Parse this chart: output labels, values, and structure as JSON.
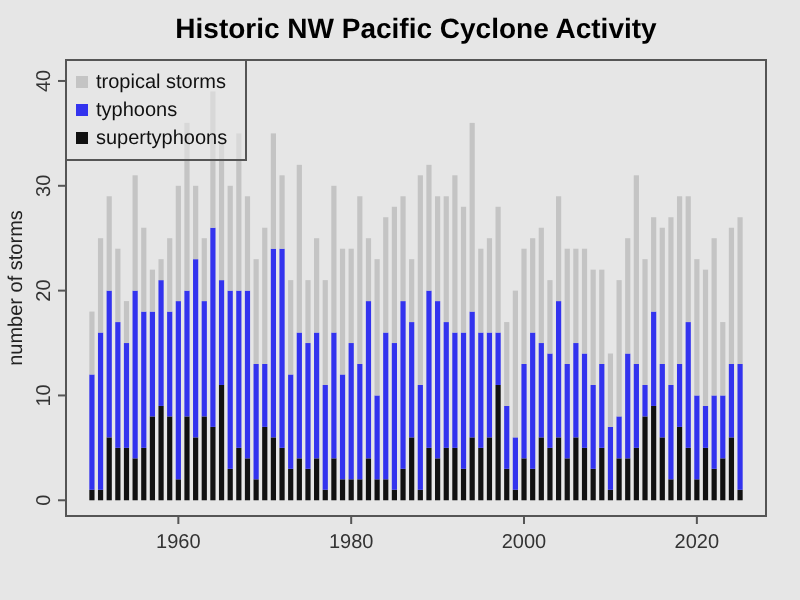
{
  "chart_data": {
    "type": "bar",
    "title": "Historic NW Pacific Cyclone Activity",
    "ylabel": "number of storms",
    "stacked": true,
    "legend": "top left",
    "grid": false,
    "x": [
      1950,
      1951,
      1952,
      1953,
      1954,
      1955,
      1956,
      1957,
      1958,
      1959,
      1960,
      1961,
      1962,
      1963,
      1964,
      1965,
      1966,
      1967,
      1968,
      1969,
      1970,
      1971,
      1972,
      1973,
      1974,
      1975,
      1976,
      1977,
      1978,
      1979,
      1980,
      1981,
      1982,
      1983,
      1984,
      1985,
      1986,
      1987,
      1988,
      1989,
      1990,
      1991,
      1992,
      1993,
      1994,
      1995,
      1996,
      1997,
      1998,
      1999,
      2000,
      2001,
      2002,
      2003,
      2004,
      2005,
      2006,
      2007,
      2008,
      2009,
      2010,
      2011,
      2012,
      2013,
      2014,
      2015,
      2016,
      2017,
      2018,
      2019,
      2020,
      2021,
      2022,
      2023,
      2024,
      2025
    ],
    "xlim": [
      1947,
      2028
    ],
    "xticks": [
      1960,
      1980,
      2000,
      2020
    ],
    "ylim": [
      -1.5,
      42
    ],
    "yticks": [
      0,
      10,
      20,
      30,
      40
    ],
    "series": [
      {
        "name": "supertyphoons",
        "color": "#111111",
        "values": [
          1,
          1,
          6,
          5,
          5,
          4,
          5,
          8,
          9,
          8,
          2,
          8,
          6,
          8,
          7,
          11,
          3,
          5,
          4,
          2,
          7,
          6,
          5,
          3,
          4,
          3,
          4,
          1,
          4,
          2,
          2,
          2,
          4,
          2,
          2,
          1,
          3,
          6,
          1,
          5,
          4,
          5,
          5,
          3,
          6,
          5,
          6,
          11,
          3,
          1,
          4,
          3,
          6,
          5,
          6,
          4,
          6,
          5,
          3,
          5,
          1,
          4,
          4,
          5,
          8,
          9,
          6,
          2,
          7,
          5,
          2,
          5,
          3,
          4,
          6,
          1
        ]
      },
      {
        "name": "typhoons",
        "color": "#3333ee",
        "values": [
          11,
          15,
          14,
          12,
          10,
          16,
          13,
          10,
          12,
          10,
          17,
          12,
          17,
          11,
          19,
          10,
          17,
          15,
          16,
          11,
          6,
          18,
          19,
          9,
          12,
          12,
          12,
          10,
          12,
          10,
          13,
          11,
          15,
          8,
          14,
          14,
          16,
          11,
          10,
          15,
          15,
          12,
          11,
          13,
          12,
          11,
          10,
          5,
          6,
          5,
          9,
          13,
          9,
          9,
          13,
          9,
          9,
          9,
          8,
          8,
          6,
          4,
          10,
          8,
          3,
          9,
          7,
          9,
          6,
          12,
          8,
          4,
          7,
          6,
          7,
          12
        ]
      },
      {
        "name": "tropical storms",
        "color": "#c4c4c4",
        "values": [
          6,
          9,
          9,
          7,
          4,
          11,
          8,
          4,
          2,
          7,
          11,
          16,
          7,
          6,
          13,
          13,
          10,
          15,
          9,
          10,
          13,
          11,
          7,
          9,
          16,
          6,
          9,
          10,
          14,
          12,
          9,
          16,
          6,
          13,
          11,
          13,
          10,
          6,
          20,
          12,
          10,
          12,
          15,
          12,
          18,
          8,
          9,
          12,
          8,
          14,
          11,
          9,
          11,
          7,
          10,
          11,
          9,
          10,
          11,
          9,
          7,
          13,
          11,
          18,
          12,
          9,
          13,
          16,
          16,
          12,
          13,
          13,
          15,
          7,
          13,
          14
        ]
      }
    ]
  }
}
